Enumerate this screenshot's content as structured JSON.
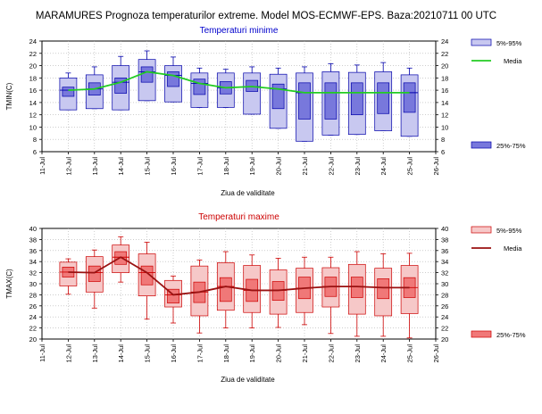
{
  "page_title": "MARAMURES  Prognoza temperaturilor extreme.  Model MOS-ECMWF-EPS. Baza:20210711 00 UTC",
  "chart_data": [
    {
      "type": "box",
      "title": "Temperaturi minime",
      "title_color": "#0000cc",
      "xlabel": "Ziua de validitate",
      "ylabel": "TMIN(C)",
      "categories": [
        "11-Jul",
        "12-Jul",
        "13-Jul",
        "14-Jul",
        "15-Jul",
        "16-Jul",
        "17-Jul",
        "18-Jul",
        "19-Jul",
        "20-Jul",
        "21-Jul",
        "22-Jul",
        "23-Jul",
        "24-Jul",
        "25-Jul",
        "26-Jul"
      ],
      "ylim": [
        6,
        24
      ],
      "yticks": [
        6,
        8,
        10,
        12,
        14,
        16,
        18,
        20,
        22,
        24
      ],
      "grid": true,
      "legend_position": "right",
      "legend": {
        "p5_95": "5%-95%",
        "median": "Media",
        "p25_75": "25%-75%"
      },
      "colors": {
        "outer_fill": "#c8c8f0",
        "inner_fill": "#7878dc",
        "edge": "#0000aa",
        "median_line": "#22cc22"
      },
      "boxes": [
        {
          "date": "12-Jul",
          "p5": 12.8,
          "p25": 15.0,
          "median": 16.0,
          "p75": 16.5,
          "p95": 18.0,
          "min": 12.8,
          "max": 18.8
        },
        {
          "date": "13-Jul",
          "p5": 13.0,
          "p25": 15.2,
          "median": 16.2,
          "p75": 17.2,
          "p95": 18.5,
          "min": 13.0,
          "max": 19.8
        },
        {
          "date": "14-Jul",
          "p5": 12.8,
          "p25": 15.5,
          "median": 17.3,
          "p75": 18.0,
          "p95": 20.0,
          "min": 12.8,
          "max": 21.5
        },
        {
          "date": "15-Jul",
          "p5": 14.3,
          "p25": 17.3,
          "median": 19.0,
          "p75": 19.8,
          "p95": 21.0,
          "min": 14.3,
          "max": 22.4
        },
        {
          "date": "16-Jul",
          "p5": 14.1,
          "p25": 16.6,
          "median": 18.4,
          "p75": 19.0,
          "p95": 20.0,
          "min": 14.1,
          "max": 21.4
        },
        {
          "date": "17-Jul",
          "p5": 13.2,
          "p25": 15.3,
          "median": 17.1,
          "p75": 17.8,
          "p95": 18.8,
          "min": 13.2,
          "max": 19.6
        },
        {
          "date": "18-Jul",
          "p5": 13.2,
          "p25": 15.4,
          "median": 16.4,
          "p75": 17.4,
          "p95": 18.8,
          "min": 13.2,
          "max": 19.4
        },
        {
          "date": "19-Jul",
          "p5": 12.1,
          "p25": 15.8,
          "median": 16.6,
          "p75": 17.6,
          "p95": 18.8,
          "min": 12.1,
          "max": 19.8
        },
        {
          "date": "20-Jul",
          "p5": 9.8,
          "p25": 13.0,
          "median": 16.2,
          "p75": 17.0,
          "p95": 18.6,
          "min": 9.8,
          "max": 19.6
        },
        {
          "date": "21-Jul",
          "p5": 7.7,
          "p25": 11.3,
          "median": 15.6,
          "p75": 17.2,
          "p95": 18.8,
          "min": 7.7,
          "max": 19.8
        },
        {
          "date": "22-Jul",
          "p5": 8.7,
          "p25": 11.3,
          "median": 15.6,
          "p75": 17.2,
          "p95": 19.0,
          "min": 8.7,
          "max": 20.3
        },
        {
          "date": "23-Jul",
          "p5": 8.8,
          "p25": 12.0,
          "median": 15.6,
          "p75": 17.2,
          "p95": 18.9,
          "min": 8.8,
          "max": 20.1
        },
        {
          "date": "24-Jul",
          "p5": 9.4,
          "p25": 12.2,
          "median": 15.6,
          "p75": 17.2,
          "p95": 19.0,
          "min": 9.4,
          "max": 20.5
        },
        {
          "date": "25-Jul",
          "p5": 8.5,
          "p25": 12.4,
          "median": 15.6,
          "p75": 17.2,
          "p95": 18.5,
          "min": 8.5,
          "max": 19.6
        }
      ]
    },
    {
      "type": "box",
      "title": "Temperaturi maxime",
      "title_color": "#cc0000",
      "xlabel": "Ziua de validitate",
      "ylabel": "TMAX(C)",
      "categories": [
        "11-Jul",
        "12-Jul",
        "13-Jul",
        "14-Jul",
        "15-Jul",
        "16-Jul",
        "17-Jul",
        "18-Jul",
        "19-Jul",
        "20-Jul",
        "21-Jul",
        "22-Jul",
        "23-Jul",
        "24-Jul",
        "25-Jul",
        "26-Jul"
      ],
      "ylim": [
        20,
        40
      ],
      "yticks": [
        20,
        22,
        24,
        26,
        28,
        30,
        32,
        34,
        36,
        38,
        40
      ],
      "grid": true,
      "legend_position": "right",
      "legend": {
        "p5_95": "5%-95%",
        "median": "Media",
        "p25_75": "25%-75%"
      },
      "colors": {
        "outer_fill": "#f6c8c8",
        "inner_fill": "#f07878",
        "edge": "#cc0000",
        "median_line": "#991111"
      },
      "boxes": [
        {
          "date": "12-Jul",
          "p5": 29.6,
          "p25": 31.2,
          "median": 32.1,
          "p75": 33.0,
          "p95": 33.9,
          "min": 28.1,
          "max": 34.5
        },
        {
          "date": "13-Jul",
          "p5": 28.5,
          "p25": 30.4,
          "median": 32.0,
          "p75": 33.2,
          "p95": 34.9,
          "min": 25.6,
          "max": 36.1
        },
        {
          "date": "14-Jul",
          "p5": 32.0,
          "p25": 33.5,
          "median": 34.8,
          "p75": 35.8,
          "p95": 37.0,
          "min": 30.3,
          "max": 38.5
        },
        {
          "date": "15-Jul",
          "p5": 27.8,
          "p25": 29.8,
          "median": 32.0,
          "p75": 33.2,
          "p95": 35.4,
          "min": 23.6,
          "max": 37.5
        },
        {
          "date": "16-Jul",
          "p5": 25.8,
          "p25": 26.5,
          "median": 28.0,
          "p75": 29.0,
          "p95": 30.6,
          "min": 22.9,
          "max": 31.4
        },
        {
          "date": "17-Jul",
          "p5": 24.2,
          "p25": 26.6,
          "median": 28.5,
          "p75": 30.3,
          "p95": 33.2,
          "min": 21.1,
          "max": 34.3
        },
        {
          "date": "18-Jul",
          "p5": 25.2,
          "p25": 26.8,
          "median": 29.5,
          "p75": 31.1,
          "p95": 33.8,
          "min": 22.0,
          "max": 35.8
        },
        {
          "date": "19-Jul",
          "p5": 24.8,
          "p25": 26.8,
          "median": 28.8,
          "p75": 30.8,
          "p95": 33.3,
          "min": 22.0,
          "max": 35.2
        },
        {
          "date": "20-Jul",
          "p5": 24.5,
          "p25": 27.0,
          "median": 28.8,
          "p75": 30.4,
          "p95": 32.5,
          "min": 22.1,
          "max": 34.6
        },
        {
          "date": "21-Jul",
          "p5": 24.8,
          "p25": 27.3,
          "median": 29.2,
          "p75": 31.2,
          "p95": 32.8,
          "min": 22.6,
          "max": 34.8
        },
        {
          "date": "22-Jul",
          "p5": 25.8,
          "p25": 27.7,
          "median": 29.5,
          "p75": 31.2,
          "p95": 32.9,
          "min": 21.0,
          "max": 34.8
        },
        {
          "date": "23-Jul",
          "p5": 24.5,
          "p25": 27.5,
          "median": 29.5,
          "p75": 31.2,
          "p95": 33.5,
          "min": 20.5,
          "max": 35.8
        },
        {
          "date": "24-Jul",
          "p5": 24.2,
          "p25": 27.3,
          "median": 29.3,
          "p75": 30.9,
          "p95": 32.8,
          "min": 20.5,
          "max": 35.4
        },
        {
          "date": "25-Jul",
          "p5": 24.6,
          "p25": 27.5,
          "median": 29.3,
          "p75": 31.1,
          "p95": 33.3,
          "min": 20.2,
          "max": 35.5
        }
      ]
    }
  ]
}
